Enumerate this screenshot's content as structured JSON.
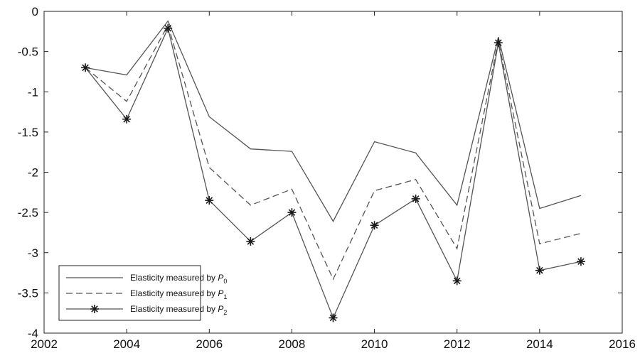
{
  "chart_data": {
    "type": "line",
    "title": "",
    "xlabel": "",
    "ylabel": "",
    "xlim": [
      2002,
      2016
    ],
    "ylim": [
      -4,
      0
    ],
    "xticks": [
      2002,
      2004,
      2006,
      2008,
      2010,
      2012,
      2014,
      2016
    ],
    "yticks": [
      0,
      -0.5,
      -1,
      -1.5,
      -2,
      -2.5,
      -3,
      -3.5,
      -4
    ],
    "xtick_labels": [
      "2002",
      "2004",
      "2006",
      "2008",
      "2010",
      "2012",
      "2014",
      "2016"
    ],
    "ytick_labels": [
      "0",
      "-0.5",
      "-1",
      "-1.5",
      "-2",
      "-2.5",
      "-3",
      "-3.5",
      "-4"
    ],
    "grid": false,
    "legend_position": "bottom-left",
    "x": [
      2003,
      2004,
      2005,
      2006,
      2007,
      2008,
      2009,
      2010,
      2011,
      2012,
      2013,
      2014,
      2015
    ],
    "series": [
      {
        "name": "Elasticity measured by P0",
        "legend_main": "Elasticity measured by ",
        "legend_var": "P",
        "legend_sub": "0",
        "style": "solid",
        "marker": "none",
        "values": [
          -0.7,
          -0.79,
          -0.12,
          -1.31,
          -1.71,
          -1.74,
          -2.61,
          -1.62,
          -1.76,
          -2.41,
          -0.32,
          -2.45,
          -2.29
        ]
      },
      {
        "name": "Elasticity measured by P1",
        "legend_main": "Elasticity measured by ",
        "legend_var": "P",
        "legend_sub": "1",
        "style": "dashed",
        "marker": "none",
        "values": [
          -0.7,
          -1.12,
          -0.17,
          -1.94,
          -2.41,
          -2.21,
          -3.33,
          -2.23,
          -2.09,
          -2.95,
          -0.36,
          -2.89,
          -2.76
        ]
      },
      {
        "name": "Elasticity measured by P2",
        "legend_main": "Elasticity measured by ",
        "legend_var": "P",
        "legend_sub": "2",
        "style": "solid",
        "marker": "star",
        "values": [
          -0.7,
          -1.34,
          -0.21,
          -2.35,
          -2.86,
          -2.5,
          -3.81,
          -2.66,
          -2.33,
          -3.35,
          -0.39,
          -3.22,
          -3.11
        ]
      }
    ],
    "colors": {
      "line": "#555555",
      "axis": "#222222",
      "background": "#ffffff"
    }
  }
}
